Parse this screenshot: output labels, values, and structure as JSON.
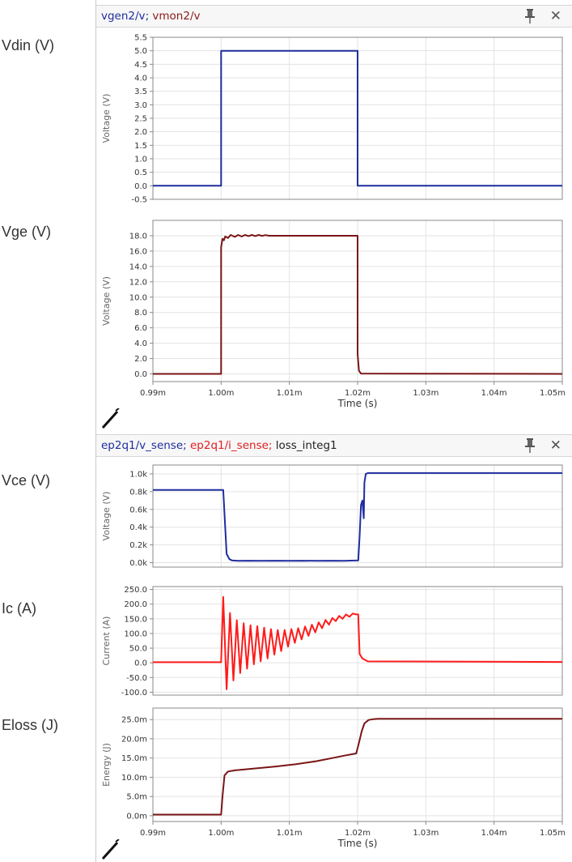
{
  "side_labels": {
    "vdin": "Vdin (V)",
    "vge": "Vge (V)",
    "vce": "Vce (V)",
    "ic": "Ic (A)",
    "eloss": "Eloss (J)"
  },
  "panel1": {
    "title_parts": [
      {
        "text": "vgen2/v",
        "color": "#1f2d9e"
      },
      {
        "text": "; ",
        "color": "#1f2d9e"
      },
      {
        "text": "vmon2/v",
        "color": "#8b1a1a"
      }
    ],
    "icons": [
      "pin-icon",
      "close-icon"
    ],
    "close_glyph": "✕"
  },
  "panel2": {
    "title_parts": [
      {
        "text": "ep2q1/v_sense",
        "color": "#1f2d9e"
      },
      {
        "text": "; ",
        "color": "#1f2d9e"
      },
      {
        "text": "ep2q1/i_sense",
        "color": "#e02020"
      },
      {
        "text": "; ",
        "color": "#e02020"
      },
      {
        "text": "loss_integ1",
        "color": "#222222"
      }
    ],
    "icons": [
      "pin-icon",
      "close-icon"
    ],
    "close_glyph": "✕"
  },
  "colors": {
    "blue": "#1f2d9e",
    "darkred": "#7a1515",
    "red": "#ff1a1a",
    "grid": "#e3e3e3",
    "axis": "#888888"
  },
  "chart_data": [
    {
      "type": "line",
      "ylabel": "Voltage (V)",
      "xlim": [
        0.99,
        1.05
      ],
      "ylim": [
        -0.5,
        5.5
      ],
      "yticks": [
        5.5,
        5.0,
        4.5,
        4.0,
        3.5,
        3.0,
        2.5,
        2.0,
        1.5,
        1.0,
        0.5,
        0.0,
        -0.5
      ],
      "ytick_labels": [
        "5.5",
        "5.0",
        "4.5",
        "4.0",
        "3.5",
        "3.0",
        "2.5",
        "2.0",
        "1.5",
        "1.0",
        "0.5",
        "0.0",
        "-0.5"
      ],
      "series": [
        {
          "color": "#1f2d9e",
          "x": [
            0.99,
            1.0,
            1.0,
            1.02,
            1.02,
            1.05
          ],
          "y": [
            0,
            0,
            5,
            5,
            0,
            0
          ]
        }
      ]
    },
    {
      "type": "line",
      "ylabel": "Voltage (V)",
      "xlabel": "Time (s)",
      "xlim": [
        0.99,
        1.05
      ],
      "ylim": [
        -1,
        20
      ],
      "xticks": [
        0.99,
        1.0,
        1.01,
        1.02,
        1.03,
        1.04,
        1.05
      ],
      "xtick_labels": [
        "0.99m",
        "1.00m",
        "1.01m",
        "1.02m",
        "1.03m",
        "1.04m",
        "1.05m"
      ],
      "yticks": [
        18,
        16,
        14,
        12,
        10,
        8,
        6,
        4,
        2,
        0
      ],
      "ytick_labels": [
        "18.0",
        "16.0",
        "14.0",
        "12.0",
        "10.0",
        "8.0",
        "6.0",
        "4.0",
        "2.0",
        "0.0"
      ],
      "series": [
        {
          "color": "#7a1515",
          "x": [
            0.99,
            1.0,
            1.0,
            1.0002,
            1.0004,
            1.0006,
            1.001,
            1.0014,
            1.002,
            1.0025,
            1.003,
            1.0035,
            1.004,
            1.0045,
            1.005,
            1.0055,
            1.006,
            1.0065,
            1.007,
            1.02,
            1.02,
            1.0202,
            1.0205,
            1.05
          ],
          "y": [
            0,
            0,
            16.5,
            17.6,
            17.4,
            17.9,
            17.7,
            18.1,
            17.85,
            18.1,
            17.9,
            18.1,
            17.95,
            18.1,
            17.95,
            18.1,
            17.97,
            18.08,
            18.0,
            18.0,
            2.6,
            0.4,
            0.05,
            0
          ]
        }
      ]
    },
    {
      "type": "line",
      "ylabel": "Voltage (V)",
      "xlim": [
        0.99,
        1.05
      ],
      "ylim": [
        -50,
        1100
      ],
      "yticks": [
        1000,
        800,
        600,
        400,
        200,
        0
      ],
      "ytick_labels": [
        "1.0k",
        "0.8k",
        "0.6k",
        "0.4k",
        "0.2k",
        "0.0k"
      ],
      "series": [
        {
          "color": "#1f2d9e",
          "x": [
            0.99,
            1.0003,
            1.0008,
            1.0012,
            1.0016,
            1.0025,
            1.004,
            1.006,
            1.008,
            1.01,
            1.012,
            1.014,
            1.016,
            1.018,
            1.0201,
            1.0203,
            1.0205,
            1.0207,
            1.0209,
            1.021,
            1.0212,
            1.0215,
            1.022,
            1.05
          ],
          "y": [
            820,
            820,
            100,
            40,
            25,
            20,
            22,
            20,
            22,
            20,
            22,
            20,
            22,
            20,
            25,
            300,
            650,
            700,
            500,
            900,
            1000,
            1010,
            1010,
            1010
          ]
        }
      ]
    },
    {
      "type": "line",
      "ylabel": "Current (A)",
      "xlim": [
        0.99,
        1.05
      ],
      "ylim": [
        -110,
        260
      ],
      "yticks": [
        250,
        200,
        150,
        100,
        50,
        0,
        -50,
        -100
      ],
      "ytick_labels": [
        "250.0",
        "200.0",
        "150.0",
        "100.0",
        "50.0",
        "0.0",
        "-50.0",
        "-100.0"
      ],
      "series": [
        {
          "color": "#ff1a1a",
          "x": [
            0.99,
            1.0,
            1.0003,
            1.0008,
            1.0013,
            1.0018,
            1.0023,
            1.0028,
            1.0033,
            1.0038,
            1.0043,
            1.0048,
            1.0053,
            1.0058,
            1.0063,
            1.0068,
            1.0073,
            1.0078,
            1.0083,
            1.0088,
            1.0093,
            1.0098,
            1.0103,
            1.0108,
            1.0113,
            1.0118,
            1.0123,
            1.0128,
            1.0133,
            1.0138,
            1.0143,
            1.0148,
            1.0153,
            1.0158,
            1.0163,
            1.0168,
            1.0173,
            1.0178,
            1.0183,
            1.0188,
            1.0193,
            1.0198,
            1.0201,
            1.0203,
            1.0207,
            1.0215,
            1.05
          ],
          "y": [
            2,
            2,
            225,
            -90,
            170,
            -60,
            145,
            -35,
            135,
            -20,
            128,
            -5,
            125,
            5,
            120,
            15,
            115,
            28,
            112,
            40,
            112,
            55,
            115,
            68,
            118,
            80,
            124,
            92,
            130,
            104,
            138,
            118,
            146,
            130,
            153,
            142,
            160,
            150,
            165,
            157,
            168,
            165,
            165,
            30,
            15,
            5,
            3
          ]
        }
      ]
    },
    {
      "type": "line",
      "ylabel": "Energy (J)",
      "xlabel": "Time (s)",
      "xlim": [
        0.99,
        1.05
      ],
      "ylim": [
        -1.5,
        28
      ],
      "xticks": [
        0.99,
        1.0,
        1.01,
        1.02,
        1.03,
        1.04,
        1.05
      ],
      "xtick_labels": [
        "0.99m",
        "1.00m",
        "1.01m",
        "1.02m",
        "1.03m",
        "1.04m",
        "1.05m"
      ],
      "yticks": [
        25,
        20,
        15,
        10,
        5,
        0
      ],
      "ytick_labels": [
        "25.0m",
        "20.0m",
        "15.0m",
        "10.0m",
        "5.0m",
        "0.0m"
      ],
      "series": [
        {
          "color": "#7a1515",
          "x": [
            0.99,
            1.0,
            1.0002,
            1.0005,
            1.001,
            1.002,
            1.005,
            1.008,
            1.011,
            1.014,
            1.016,
            1.018,
            1.0198,
            1.0202,
            1.0206,
            1.021,
            1.0216,
            1.0222,
            1.023,
            1.05
          ],
          "y": [
            0.3,
            0.3,
            5,
            10.5,
            11.5,
            11.8,
            12.3,
            12.8,
            13.4,
            14.2,
            14.9,
            15.6,
            16.2,
            19,
            22,
            24,
            24.9,
            25.1,
            25.2,
            25.2
          ]
        }
      ]
    }
  ]
}
